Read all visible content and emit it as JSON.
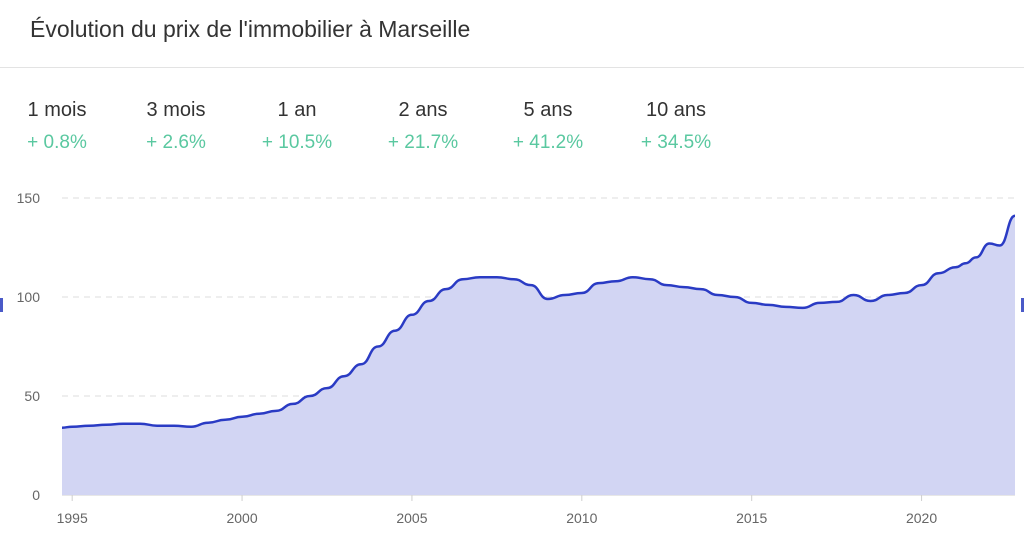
{
  "header": {
    "title": "Évolution du prix de l'immobilier à Marseille"
  },
  "stats": [
    {
      "label": "1 mois",
      "value": "+ 0.8%"
    },
    {
      "label": "3 mois",
      "value": "+ 2.6%"
    },
    {
      "label": "1 an",
      "value": "+ 10.5%"
    },
    {
      "label": "2 ans",
      "value": "+ 21.7%"
    },
    {
      "label": "5 ans",
      "value": "+ 41.2%"
    },
    {
      "label": "10 ans",
      "value": "+ 34.5%"
    }
  ],
  "colors": {
    "line": "#2a3bc4",
    "fill": "#d2d5f3",
    "positive": "#5ac8a0",
    "grid": "#dddddd",
    "axis": "#666666"
  },
  "chart_data": {
    "type": "area",
    "title": "",
    "xlabel": "",
    "ylabel": "",
    "xlim": [
      1994.7,
      2022.75
    ],
    "ylim": [
      0,
      150
    ],
    "grid": true,
    "y_ticks": [
      "0",
      "50",
      "100",
      "150"
    ],
    "x_ticks": [
      "1995",
      "2000",
      "2005",
      "2010",
      "2015",
      "2020"
    ],
    "series": [
      {
        "x": [
          1994.7,
          1995.0,
          1995.5,
          1996.0,
          1996.5,
          1997.0,
          1997.5,
          1998.0,
          1998.5,
          1999.0,
          1999.5,
          2000.0,
          2000.5,
          2001.0,
          2001.5,
          2002.0,
          2002.5,
          2003.0,
          2003.5,
          2004.0,
          2004.5,
          2005.0,
          2005.5,
          2006.0,
          2006.5,
          2007.0,
          2007.5,
          2008.0,
          2008.5,
          2009.0,
          2009.5,
          2010.0,
          2010.5,
          2011.0,
          2011.5,
          2012.0,
          2012.5,
          2013.0,
          2013.5,
          2014.0,
          2014.5,
          2015.0,
          2015.5,
          2016.0,
          2016.5,
          2017.0,
          2017.5,
          2018.0,
          2018.5,
          2019.0,
          2019.5,
          2020.0,
          2020.5,
          2021.0,
          2021.3,
          2021.6,
          2022.0,
          2022.3,
          2022.75
        ],
        "values": [
          34,
          34.5,
          35,
          35.5,
          36,
          36,
          35,
          35,
          34.5,
          36.5,
          38,
          39.5,
          41,
          42.5,
          46,
          50,
          54,
          60,
          66,
          75,
          83,
          91,
          98,
          104,
          109,
          110,
          110,
          109,
          106,
          99,
          101,
          102,
          107,
          108,
          110,
          109,
          106,
          105,
          104,
          101,
          100,
          97,
          96,
          95,
          94.5,
          97,
          97.5,
          101,
          98,
          101,
          102,
          106,
          112,
          115,
          117,
          120,
          127,
          126,
          141
        ]
      }
    ]
  }
}
